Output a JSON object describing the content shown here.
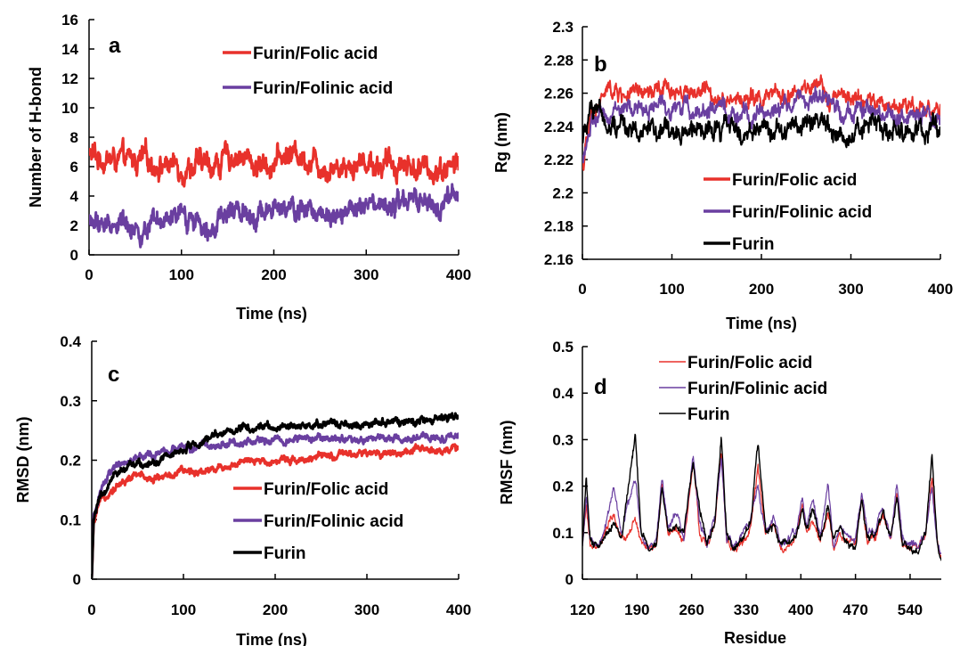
{
  "chart_data": [
    {
      "type": "line",
      "panel_label": "a",
      "xlabel": "Time (ns)",
      "ylabel": "Number of H-bond",
      "xlim": [
        0,
        400
      ],
      "ylim": [
        0,
        16
      ],
      "xticks": [
        0,
        100,
        200,
        300,
        400
      ],
      "yticks": [
        0,
        2,
        4,
        6,
        8,
        10,
        12,
        14,
        16
      ],
      "ytick_labels": [
        "0",
        "2",
        "4",
        "6",
        "8",
        "10",
        "12",
        "14",
        "16"
      ],
      "legend_position": "top-right",
      "series": [
        {
          "name": "Furin/Folic acid",
          "color": "#e8312b",
          "noise": 0.9,
          "lw": 3,
          "x": [
            0,
            20,
            40,
            60,
            80,
            100,
            120,
            140,
            160,
            180,
            200,
            220,
            240,
            260,
            280,
            300,
            320,
            340,
            360,
            380,
            400
          ],
          "y": [
            6.8,
            6.5,
            6.3,
            6.4,
            6.2,
            6.0,
            6.1,
            6.2,
            6.9,
            6.1,
            6.3,
            7.0,
            6.5,
            6.0,
            6.2,
            6.4,
            6.1,
            6.3,
            5.8,
            5.9,
            6.2
          ]
        },
        {
          "name": "Furin/Folinic acid",
          "color": "#6a3fa0",
          "noise": 0.8,
          "lw": 3,
          "x": [
            0,
            20,
            40,
            60,
            80,
            100,
            120,
            140,
            160,
            180,
            200,
            220,
            240,
            260,
            280,
            300,
            320,
            340,
            360,
            380,
            400
          ],
          "y": [
            2.2,
            2.0,
            2.3,
            1.5,
            2.0,
            2.5,
            2.4,
            2.2,
            3.0,
            2.9,
            3.0,
            2.9,
            3.0,
            3.1,
            3.0,
            3.1,
            3.0,
            3.4,
            3.6,
            3.0,
            4.0
          ]
        }
      ]
    },
    {
      "type": "line",
      "panel_label": "b",
      "xlabel": "Time (ns)",
      "ylabel": "Rg (nm)",
      "xlim": [
        0,
        400
      ],
      "ylim": [
        2.16,
        2.3
      ],
      "xticks": [
        0,
        100,
        200,
        300,
        400
      ],
      "yticks": [
        2.16,
        2.18,
        2.2,
        2.22,
        2.24,
        2.26,
        2.28,
        2.3
      ],
      "ytick_labels": [
        "2.16",
        "2.18",
        "2.2",
        "2.22",
        "2.24",
        "2.26",
        "2.28",
        "2.3"
      ],
      "legend_position": "bottom-right",
      "series": [
        {
          "name": "Furin/Folic acid",
          "color": "#e8312b",
          "noise": 0.006,
          "lw": 2,
          "x": [
            0,
            5,
            10,
            20,
            30,
            40,
            60,
            80,
            100,
            120,
            140,
            160,
            180,
            200,
            220,
            240,
            260,
            280,
            300,
            320,
            340,
            360,
            380,
            400
          ],
          "y": [
            2.215,
            2.23,
            2.245,
            2.255,
            2.262,
            2.26,
            2.258,
            2.26,
            2.262,
            2.262,
            2.26,
            2.258,
            2.256,
            2.256,
            2.258,
            2.26,
            2.262,
            2.258,
            2.256,
            2.255,
            2.252,
            2.254,
            2.252,
            2.25
          ]
        },
        {
          "name": "Furin/Folinic acid",
          "color": "#6a3fa0",
          "noise": 0.006,
          "lw": 2,
          "x": [
            0,
            5,
            10,
            20,
            30,
            40,
            60,
            80,
            100,
            120,
            140,
            160,
            180,
            200,
            220,
            240,
            260,
            280,
            300,
            320,
            340,
            360,
            380,
            400
          ],
          "y": [
            2.22,
            2.232,
            2.24,
            2.245,
            2.248,
            2.25,
            2.25,
            2.252,
            2.252,
            2.25,
            2.25,
            2.248,
            2.245,
            2.25,
            2.25,
            2.255,
            2.258,
            2.252,
            2.25,
            2.248,
            2.246,
            2.246,
            2.245,
            2.243
          ]
        },
        {
          "name": "Furin",
          "color": "#000000",
          "noise": 0.007,
          "lw": 2,
          "x": [
            0,
            5,
            10,
            20,
            30,
            40,
            60,
            80,
            100,
            120,
            140,
            160,
            180,
            200,
            220,
            240,
            260,
            280,
            300,
            320,
            340,
            360,
            380,
            400
          ],
          "y": [
            2.228,
            2.245,
            2.255,
            2.25,
            2.242,
            2.24,
            2.24,
            2.238,
            2.236,
            2.236,
            2.236,
            2.238,
            2.236,
            2.238,
            2.24,
            2.242,
            2.24,
            2.238,
            2.238,
            2.24,
            2.238,
            2.238,
            2.236,
            2.238
          ]
        }
      ]
    },
    {
      "type": "line",
      "panel_label": "c",
      "xlabel": "Time (ns)",
      "ylabel": "RMSD (nm)",
      "xlim": [
        0,
        400
      ],
      "ylim": [
        0,
        0.4
      ],
      "xticks": [
        0,
        100,
        200,
        300,
        400
      ],
      "yticks": [
        0,
        0.1,
        0.2,
        0.3,
        0.4
      ],
      "ytick_labels": [
        "0",
        "0.1",
        "0.2",
        "0.3",
        "0.4"
      ],
      "legend_position": "bottom-right",
      "series": [
        {
          "name": "Furin/Folic acid",
          "color": "#e8312b",
          "noise": 0.007,
          "lw": 3,
          "x": [
            0,
            2,
            5,
            10,
            20,
            30,
            50,
            70,
            100,
            130,
            160,
            200,
            250,
            300,
            350,
            400
          ],
          "y": [
            0.0,
            0.09,
            0.11,
            0.13,
            0.15,
            0.16,
            0.175,
            0.17,
            0.18,
            0.185,
            0.195,
            0.2,
            0.205,
            0.21,
            0.215,
            0.22
          ]
        },
        {
          "name": "Furin/Folinic acid",
          "color": "#6a3fa0",
          "noise": 0.007,
          "lw": 3,
          "x": [
            0,
            2,
            5,
            10,
            20,
            30,
            50,
            70,
            100,
            130,
            160,
            200,
            250,
            300,
            350,
            400
          ],
          "y": [
            0.0,
            0.1,
            0.12,
            0.15,
            0.18,
            0.19,
            0.205,
            0.21,
            0.22,
            0.225,
            0.23,
            0.235,
            0.235,
            0.235,
            0.235,
            0.24
          ]
        },
        {
          "name": "Furin",
          "color": "#000000",
          "noise": 0.007,
          "lw": 3,
          "x": [
            0,
            2,
            5,
            10,
            20,
            30,
            50,
            70,
            100,
            130,
            160,
            200,
            250,
            300,
            350,
            400
          ],
          "y": [
            0.0,
            0.1,
            0.12,
            0.14,
            0.165,
            0.18,
            0.195,
            0.2,
            0.22,
            0.24,
            0.255,
            0.255,
            0.26,
            0.26,
            0.265,
            0.275
          ]
        }
      ]
    },
    {
      "type": "line",
      "panel_label": "d",
      "xlabel": "Residue",
      "ylabel": "RMSF (nm)",
      "xlim": [
        120,
        580
      ],
      "ylim": [
        0,
        0.5
      ],
      "xticks": [
        120,
        190,
        260,
        330,
        400,
        470,
        540
      ],
      "yticks": [
        0,
        0.1,
        0.2,
        0.3,
        0.4,
        0.5
      ],
      "ytick_labels": [
        "0",
        "0.1",
        "0.2",
        "0.3",
        "0.4",
        "0.5"
      ],
      "legend_position": "top-left",
      "series": [
        {
          "name": "Furin/Folic acid",
          "color": "#e8312b",
          "noise": 0.01,
          "lw": 1.2,
          "x": [
            120,
            125,
            130,
            140,
            150,
            160,
            170,
            180,
            188,
            195,
            205,
            215,
            222,
            230,
            240,
            250,
            262,
            270,
            280,
            290,
            298,
            305,
            315,
            325,
            335,
            345,
            355,
            365,
            375,
            385,
            395,
            402,
            408,
            415,
            425,
            435,
            442,
            450,
            460,
            470,
            478,
            485,
            495,
            505,
            515,
            523,
            530,
            540,
            550,
            560,
            568,
            575,
            580
          ],
          "y": [
            0.07,
            0.16,
            0.07,
            0.06,
            0.1,
            0.14,
            0.08,
            0.1,
            0.13,
            0.08,
            0.06,
            0.07,
            0.2,
            0.1,
            0.11,
            0.08,
            0.25,
            0.1,
            0.07,
            0.12,
            0.27,
            0.08,
            0.06,
            0.08,
            0.1,
            0.24,
            0.09,
            0.12,
            0.06,
            0.07,
            0.1,
            0.16,
            0.1,
            0.12,
            0.08,
            0.14,
            0.07,
            0.1,
            0.08,
            0.07,
            0.18,
            0.08,
            0.09,
            0.14,
            0.08,
            0.19,
            0.08,
            0.07,
            0.06,
            0.09,
            0.22,
            0.07,
            0.05
          ]
        },
        {
          "name": "Furin/Folinic acid",
          "color": "#6a3fa0",
          "noise": 0.01,
          "lw": 1.2,
          "x": [
            120,
            125,
            130,
            140,
            150,
            160,
            170,
            180,
            188,
            195,
            205,
            215,
            222,
            230,
            240,
            250,
            262,
            270,
            280,
            290,
            298,
            305,
            315,
            325,
            335,
            345,
            355,
            365,
            375,
            385,
            395,
            402,
            408,
            415,
            425,
            435,
            442,
            450,
            460,
            470,
            478,
            485,
            495,
            505,
            515,
            523,
            530,
            540,
            550,
            560,
            568,
            575,
            580
          ],
          "y": [
            0.07,
            0.18,
            0.08,
            0.07,
            0.12,
            0.19,
            0.1,
            0.17,
            0.22,
            0.09,
            0.07,
            0.08,
            0.22,
            0.11,
            0.14,
            0.09,
            0.27,
            0.12,
            0.08,
            0.14,
            0.26,
            0.09,
            0.07,
            0.1,
            0.12,
            0.21,
            0.1,
            0.14,
            0.07,
            0.08,
            0.11,
            0.18,
            0.12,
            0.17,
            0.09,
            0.2,
            0.08,
            0.12,
            0.09,
            0.08,
            0.19,
            0.1,
            0.1,
            0.16,
            0.09,
            0.21,
            0.09,
            0.08,
            0.07,
            0.1,
            0.2,
            0.08,
            0.06
          ]
        },
        {
          "name": "Furin",
          "color": "#000000",
          "noise": 0.01,
          "lw": 1.4,
          "x": [
            120,
            125,
            130,
            140,
            150,
            160,
            170,
            180,
            188,
            195,
            205,
            215,
            222,
            230,
            240,
            250,
            262,
            270,
            280,
            290,
            298,
            305,
            315,
            325,
            335,
            345,
            355,
            365,
            375,
            385,
            395,
            402,
            408,
            415,
            425,
            435,
            442,
            450,
            460,
            470,
            478,
            485,
            495,
            505,
            515,
            523,
            530,
            540,
            550,
            560,
            568,
            575,
            580
          ],
          "y": [
            0.07,
            0.22,
            0.08,
            0.07,
            0.1,
            0.12,
            0.09,
            0.2,
            0.31,
            0.1,
            0.07,
            0.08,
            0.2,
            0.1,
            0.12,
            0.1,
            0.26,
            0.15,
            0.08,
            0.12,
            0.3,
            0.1,
            0.07,
            0.09,
            0.12,
            0.29,
            0.1,
            0.12,
            0.07,
            0.08,
            0.1,
            0.15,
            0.11,
            0.15,
            0.08,
            0.15,
            0.08,
            0.11,
            0.08,
            0.07,
            0.17,
            0.09,
            0.09,
            0.15,
            0.08,
            0.18,
            0.08,
            0.07,
            0.06,
            0.1,
            0.27,
            0.08,
            0.05
          ]
        }
      ]
    }
  ]
}
